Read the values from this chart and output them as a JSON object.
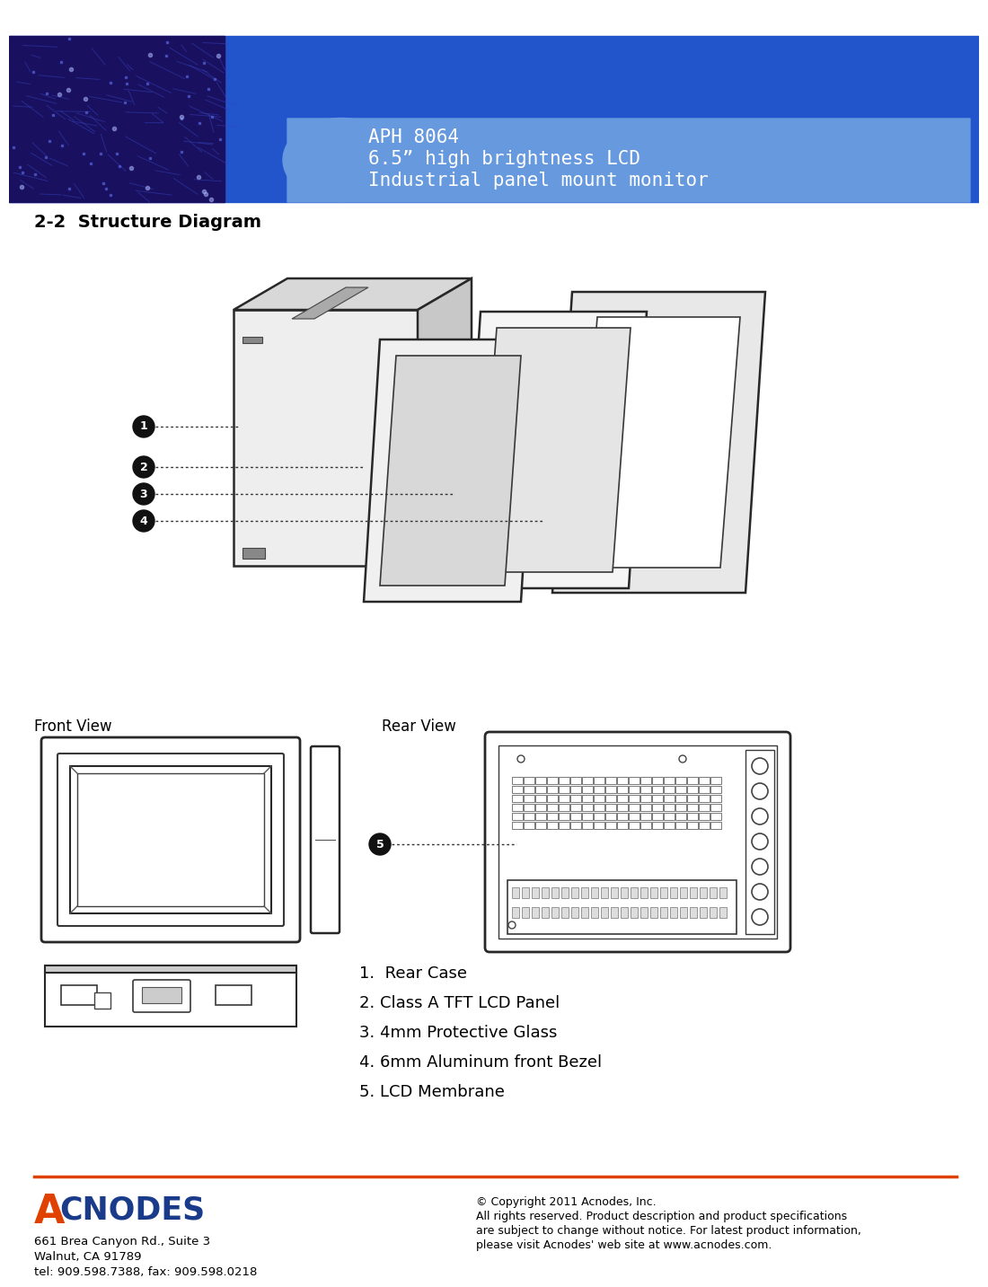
{
  "title_model": "APH 8064",
  "title_line2": "6.5” high brightness LCD",
  "title_line3": "Industrial panel mount monitor",
  "section_title": "2-2  Structure Diagram",
  "header_bg_color": "#2255cc",
  "header_light_bg": "#5580cc",
  "title_text_color": "#ffffff",
  "section_title_color": "#000000",
  "front_view_label": "Front View",
  "rear_view_label": "Rear View",
  "components": [
    "1.  Rear Case",
    "2. Class A TFT LCD Panel",
    "3. 4mm Protective Glass",
    "4. 6mm Aluminum front Bezel",
    "5. LCD Membrane"
  ],
  "footer_line_color": "#e04000",
  "footer_address": "661 Brea Canyon Rd., Suite 3\nWalnut, CA 91789\ntel: 909.598.7388, fax: 909.598.0218",
  "footer_copyright": "© Copyright 2011 Acnodes, Inc.\nAll rights reserved. Product description and product specifications\nare subject to change without notice. For latest product information,\nplease visit Acnodes' web site at www.acnodes.com.",
  "acnodes_A_color": "#e04000",
  "acnodes_text_color": "#1a3a8a"
}
